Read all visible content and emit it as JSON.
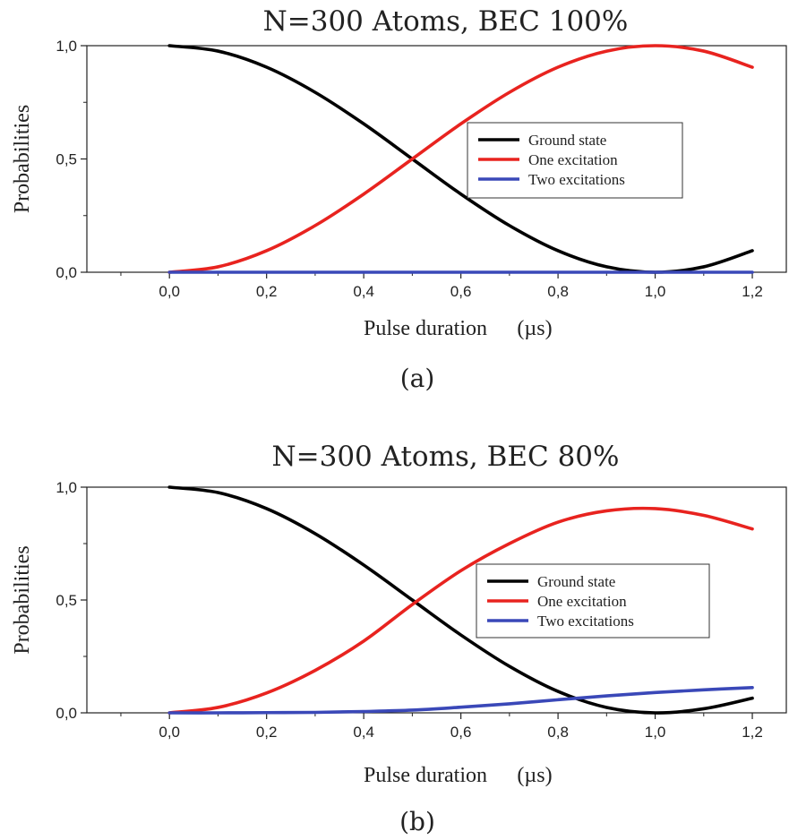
{
  "chart_data": [
    {
      "type": "line",
      "title": "N=300 Atoms, BEC 100%",
      "caption": "(a)",
      "xlabel": "Pulse duration",
      "xunit": "(µs)",
      "ylabel": "Probabilities",
      "xlim": [
        -0.17,
        1.27
      ],
      "ylim": [
        0,
        1
      ],
      "xticks": [
        "0,0",
        "0,2",
        "0,4",
        "0,6",
        "0,8",
        "1,0",
        "1,2"
      ],
      "yticks": [
        "0,0",
        "0,5",
        "1,0"
      ],
      "legend_position": "right",
      "x": [
        0.0,
        0.1,
        0.2,
        0.3,
        0.4,
        0.5,
        0.6,
        0.7,
        0.8,
        0.9,
        1.0,
        1.1,
        1.2
      ],
      "series": [
        {
          "name": "Ground state",
          "color": "#000000",
          "values": [
            1.0,
            0.976,
            0.905,
            0.794,
            0.655,
            0.5,
            0.345,
            0.206,
            0.095,
            0.024,
            0.0,
            0.024,
            0.095
          ]
        },
        {
          "name": "One excitation",
          "color": "#e8231f",
          "values": [
            0.0,
            0.024,
            0.095,
            0.206,
            0.345,
            0.5,
            0.655,
            0.794,
            0.905,
            0.976,
            1.0,
            0.976,
            0.905
          ]
        },
        {
          "name": "Two excitations",
          "color": "#3a48b8",
          "values": [
            0,
            0,
            0,
            0,
            0,
            0,
            0,
            0,
            0,
            0,
            0,
            0,
            0
          ]
        }
      ]
    },
    {
      "type": "line",
      "title": "N=300 Atoms, BEC 80%",
      "caption": "(b)",
      "xlabel": "Pulse duration",
      "xunit": "(µs)",
      "ylabel": "Probabilities",
      "xlim": [
        -0.17,
        1.27
      ],
      "ylim": [
        0,
        1
      ],
      "xticks": [
        "0,0",
        "0,2",
        "0,4",
        "0,6",
        "0,8",
        "1,0",
        "1,2"
      ],
      "yticks": [
        "0,0",
        "0,5",
        "1,0"
      ],
      "legend_position": "right",
      "x": [
        0.0,
        0.1,
        0.2,
        0.3,
        0.4,
        0.5,
        0.6,
        0.7,
        0.8,
        0.9,
        1.0,
        1.1,
        1.2
      ],
      "series": [
        {
          "name": "Ground state",
          "color": "#000000",
          "values": [
            1.0,
            0.976,
            0.905,
            0.794,
            0.655,
            0.5,
            0.345,
            0.206,
            0.095,
            0.024,
            0.0,
            0.018,
            0.065
          ]
        },
        {
          "name": "One excitation",
          "color": "#e8231f",
          "values": [
            0.0,
            0.024,
            0.088,
            0.188,
            0.318,
            0.48,
            0.63,
            0.75,
            0.845,
            0.895,
            0.905,
            0.875,
            0.815
          ]
        },
        {
          "name": "Two excitations",
          "color": "#3a48b8",
          "values": [
            0.0,
            0.0,
            0.001,
            0.002,
            0.006,
            0.012,
            0.025,
            0.04,
            0.058,
            0.075,
            0.09,
            0.102,
            0.112
          ]
        }
      ]
    }
  ]
}
